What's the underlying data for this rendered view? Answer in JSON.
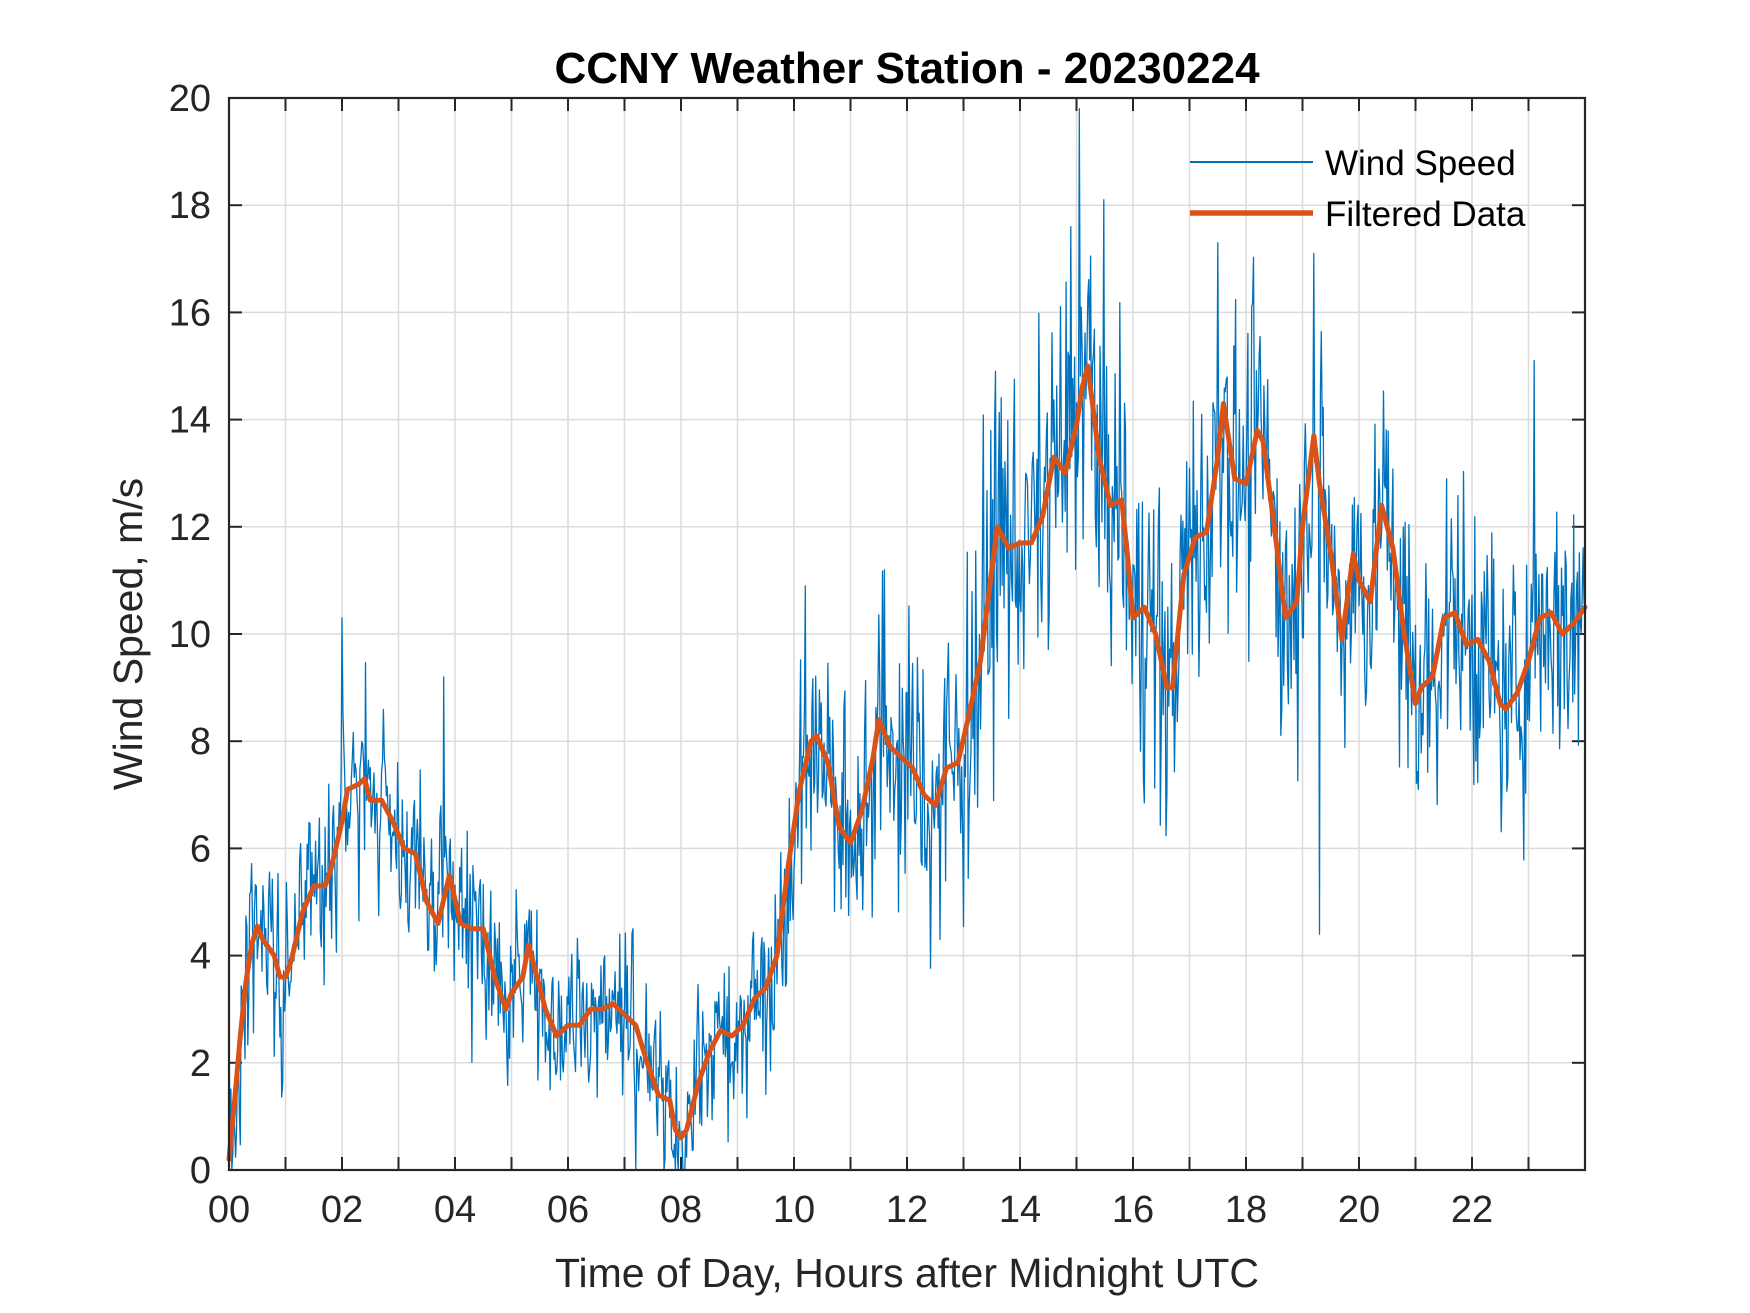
{
  "chart_data": {
    "type": "line",
    "title": "CCNY Weather Station - 20230224",
    "xlabel": "Time of Day, Hours after Midnight UTC",
    "ylabel": "Wind Speed, m/s",
    "xlim": [
      0,
      24
    ],
    "ylim": [
      0,
      20
    ],
    "x_ticks": [
      0,
      2,
      4,
      6,
      8,
      10,
      12,
      14,
      16,
      18,
      20,
      22
    ],
    "x_tick_labels": [
      "00",
      "02",
      "04",
      "06",
      "08",
      "10",
      "12",
      "14",
      "16",
      "18",
      "20",
      "22"
    ],
    "x_minor_grid_step": 1,
    "y_ticks": [
      0,
      2,
      4,
      6,
      8,
      10,
      12,
      14,
      16,
      18,
      20
    ],
    "y_tick_labels": [
      "0",
      "2",
      "4",
      "6",
      "8",
      "10",
      "12",
      "14",
      "16",
      "18",
      "20"
    ],
    "grid": true,
    "legend_position": "top-right",
    "series": [
      {
        "name": "Wind Speed",
        "color": "#0072BD",
        "style": "thin-noisy",
        "envelope_note": "raw 1-minute samples estimated from the plot: filtered trend plus fluctuations",
        "noise_sd": [
          [
            0,
            1.0
          ],
          [
            6,
            0.7
          ],
          [
            9,
            0.8
          ],
          [
            13,
            1.6
          ],
          [
            16,
            1.5
          ],
          [
            20,
            1.3
          ],
          [
            24,
            1.3
          ]
        ],
        "highlights": [
          [
            2.0,
            10.3
          ],
          [
            3.8,
            9.2
          ],
          [
            10.2,
            10.9
          ],
          [
            15.05,
            19.8
          ],
          [
            14.9,
            17.6
          ],
          [
            17.5,
            17.3
          ],
          [
            19.2,
            17.1
          ],
          [
            7.2,
            0.0
          ],
          [
            7.7,
            0.0
          ],
          [
            19.3,
            4.4
          ],
          [
            23.1,
            15.1
          ]
        ]
      },
      {
        "name": "Filtered Data",
        "color": "#D95319",
        "style": "thick",
        "x": [
          0.0,
          0.1,
          0.2,
          0.3,
          0.4,
          0.5,
          0.6,
          0.8,
          0.9,
          1.0,
          1.1,
          1.3,
          1.5,
          1.7,
          1.8,
          2.0,
          2.1,
          2.3,
          2.4,
          2.5,
          2.7,
          2.9,
          3.1,
          3.3,
          3.5,
          3.7,
          3.9,
          4.1,
          4.3,
          4.5,
          4.7,
          4.9,
          5.0,
          5.2,
          5.3,
          5.5,
          5.6,
          5.8,
          6.0,
          6.2,
          6.4,
          6.6,
          6.8,
          7.0,
          7.2,
          7.4,
          7.6,
          7.8,
          7.9,
          8.0,
          8.1,
          8.3,
          8.5,
          8.7,
          8.9,
          9.1,
          9.3,
          9.5,
          9.7,
          9.9,
          10.1,
          10.3,
          10.4,
          10.6,
          10.8,
          11.0,
          11.2,
          11.4,
          11.5,
          11.7,
          11.9,
          12.1,
          12.3,
          12.5,
          12.7,
          12.9,
          13.1,
          13.3,
          13.5,
          13.6,
          13.8,
          14.0,
          14.2,
          14.4,
          14.6,
          14.8,
          15.0,
          15.1,
          15.2,
          15.4,
          15.6,
          15.8,
          15.9,
          16.0,
          16.2,
          16.4,
          16.6,
          16.7,
          16.9,
          17.1,
          17.3,
          17.5,
          17.6,
          17.8,
          18.0,
          18.2,
          18.3,
          18.5,
          18.7,
          18.9,
          19.0,
          19.2,
          19.3,
          19.5,
          19.7,
          19.9,
          20.0,
          20.2,
          20.4,
          20.6,
          20.8,
          21.0,
          21.1,
          21.3,
          21.5,
          21.7,
          21.9,
          22.1,
          22.3,
          22.5,
          22.6,
          22.8,
          23.0,
          23.2,
          23.4,
          23.6,
          23.8,
          24.0
        ],
        "values": [
          0.2,
          1.3,
          2.5,
          3.5,
          4.2,
          4.55,
          4.3,
          4.0,
          3.6,
          3.6,
          3.9,
          4.8,
          5.3,
          5.3,
          5.6,
          6.5,
          7.1,
          7.2,
          7.3,
          6.9,
          6.9,
          6.5,
          6.0,
          5.9,
          5.0,
          4.6,
          5.5,
          4.6,
          4.5,
          4.5,
          3.6,
          3.0,
          3.3,
          3.6,
          4.2,
          3.4,
          3.0,
          2.5,
          2.7,
          2.7,
          3.0,
          3.0,
          3.1,
          2.9,
          2.7,
          2.0,
          1.4,
          1.3,
          0.75,
          0.6,
          0.75,
          1.6,
          2.2,
          2.6,
          2.5,
          2.7,
          3.2,
          3.4,
          4.0,
          5.7,
          7.1,
          8.0,
          8.1,
          7.6,
          6.4,
          6.1,
          6.7,
          7.7,
          8.4,
          7.9,
          7.7,
          7.5,
          7.0,
          6.8,
          7.5,
          7.6,
          8.5,
          9.5,
          11.2,
          12.0,
          11.6,
          11.7,
          11.7,
          12.2,
          13.3,
          13.0,
          13.9,
          14.6,
          15.0,
          13.3,
          12.4,
          12.5,
          11.5,
          10.3,
          10.5,
          10.0,
          9.0,
          9.0,
          11.1,
          11.8,
          11.9,
          13.3,
          14.3,
          12.9,
          12.8,
          13.8,
          13.6,
          12.0,
          10.3,
          10.6,
          12.0,
          13.7,
          12.8,
          11.5,
          9.9,
          11.5,
          11.0,
          10.6,
          12.4,
          11.6,
          10.0,
          8.7,
          9.0,
          9.2,
          10.3,
          10.4,
          9.8,
          9.9,
          9.5,
          8.7,
          8.6,
          8.9,
          9.5,
          10.3,
          10.4,
          10.0,
          10.2,
          10.5
        ]
      }
    ]
  }
}
